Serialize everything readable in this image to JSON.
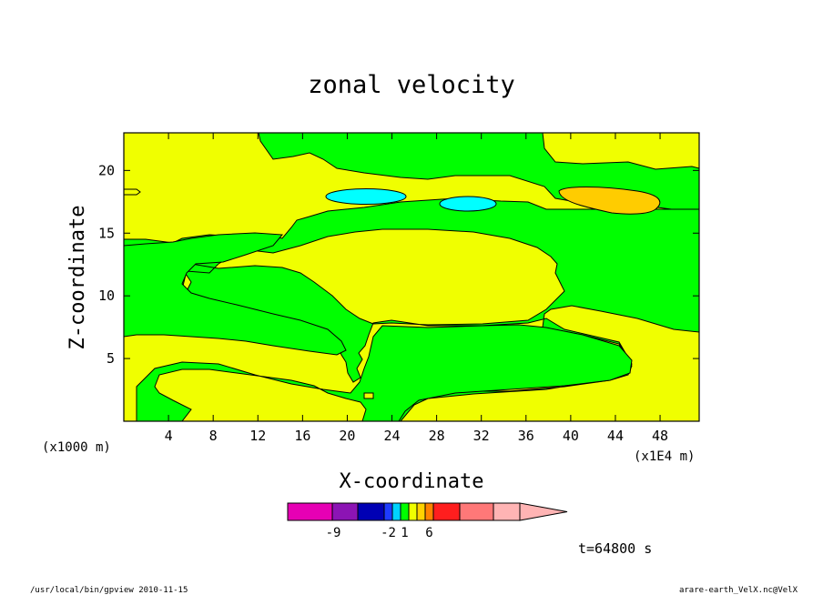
{
  "chart_data": {
    "type": "heatmap",
    "title": "zonal velocity",
    "xlabel": "X-coordinate",
    "ylabel": "Z-coordinate",
    "x_unit_left": "(x1000 m)",
    "x_unit_right": "(x1E4 m)",
    "xlim": [
      0,
      51.5
    ],
    "ylim": [
      0,
      23
    ],
    "x_ticks": [
      4,
      8,
      12,
      16,
      20,
      24,
      28,
      32,
      36,
      40,
      44,
      48
    ],
    "y_ticks": [
      5,
      10,
      15,
      20
    ],
    "levels": [
      {
        "label": "-9",
        "color": "#e600b4"
      },
      {
        "label": "",
        "color": "#8c14b4"
      },
      {
        "label": "",
        "color": "#0000b4"
      },
      {
        "label": "-2",
        "color": "#1e3cff"
      },
      {
        "label": "",
        "color": "#00d2ff"
      },
      {
        "label": "1",
        "color": "#00ff00"
      },
      {
        "label": "",
        "color": "#f0ff00"
      },
      {
        "label": "",
        "color": "#ffd200"
      },
      {
        "label": "6",
        "color": "#ff8200"
      },
      {
        "label": "",
        "color": "#ff1e1e"
      },
      {
        "label": "",
        "color": "#ff7878"
      },
      {
        "label": "",
        "color": "#ffb4b4"
      }
    ],
    "colorbar_labels": [
      "-9",
      "-2",
      "1",
      "6"
    ],
    "regions": [
      {
        "value": "positive-weak",
        "color": "#f0ff00"
      },
      {
        "value": "near-zero",
        "color": "#00ff00"
      },
      {
        "value": "negative",
        "color": "#00ffff"
      },
      {
        "value": "positive-strong",
        "color": "#ffcc00"
      }
    ]
  },
  "time_label": "t=64800 s",
  "footer_left": "/usr/local/bin/gpview  2010-11-15",
  "footer_right": "arare-earth_VelX.nc@VelX",
  "colors": {
    "green": "#00ff00",
    "yellow": "#f0ff00",
    "cyan": "#00ffff",
    "orange": "#ffcc00"
  }
}
